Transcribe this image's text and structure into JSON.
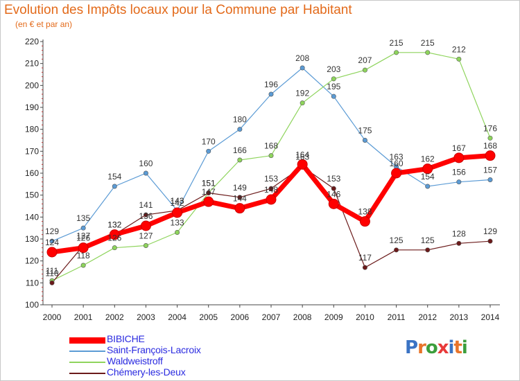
{
  "header": {
    "title": "Evolution des Impôts locaux pour la Commune par Habitant",
    "subtitle": "(en € et par an)"
  },
  "brand": {
    "text": "Proxiti",
    "letter_colors": [
      "#3a73c4",
      "#e8742a",
      "#3c9e3c",
      "#e83a3a",
      "#3a73c4",
      "#e8742a",
      "#3c9e3c"
    ]
  },
  "chart_data": {
    "type": "line",
    "title": "Evolution des Impôts locaux pour la Commune par Habitant",
    "subtitle": "(en € et par an)",
    "xlabel": "",
    "ylabel": "",
    "x": [
      "2000",
      "2001",
      "2002",
      "2003",
      "2004",
      "2005",
      "2006",
      "2007",
      "2008",
      "2009",
      "2010",
      "2011",
      "2012",
      "2013",
      "2014"
    ],
    "ylim": [
      100,
      220
    ],
    "yticks": [
      100,
      110,
      120,
      130,
      140,
      150,
      160,
      170,
      180,
      190,
      200,
      210,
      220
    ],
    "grid": false,
    "legend_position": "bottom-left",
    "series": [
      {
        "name": "BIBICHE",
        "color": "#ff0000",
        "values": [
          124,
          126,
          132,
          136,
          142,
          147,
          144,
          148,
          164,
          146,
          138,
          160,
          162,
          167,
          168
        ]
      },
      {
        "name": "Saint-François-Lacroix",
        "color": "#5b9bd5",
        "values": [
          129,
          135,
          154,
          160,
          143,
          170,
          180,
          196,
          208,
          195,
          175,
          163,
          154,
          156,
          157
        ]
      },
      {
        "name": "Waldweistroff",
        "color": "#8ed45c",
        "values": [
          111,
          118,
          126,
          127,
          133,
          151,
          166,
          168,
          192,
          203,
          207,
          215,
          215,
          212,
          176
        ]
      },
      {
        "name": "Chémery-les-Deux",
        "color": "#6b1a1a",
        "values": [
          110,
          127,
          132,
          141,
          143,
          151,
          149,
          153,
          163,
          153,
          117,
          125,
          125,
          128,
          129
        ]
      }
    ]
  }
}
